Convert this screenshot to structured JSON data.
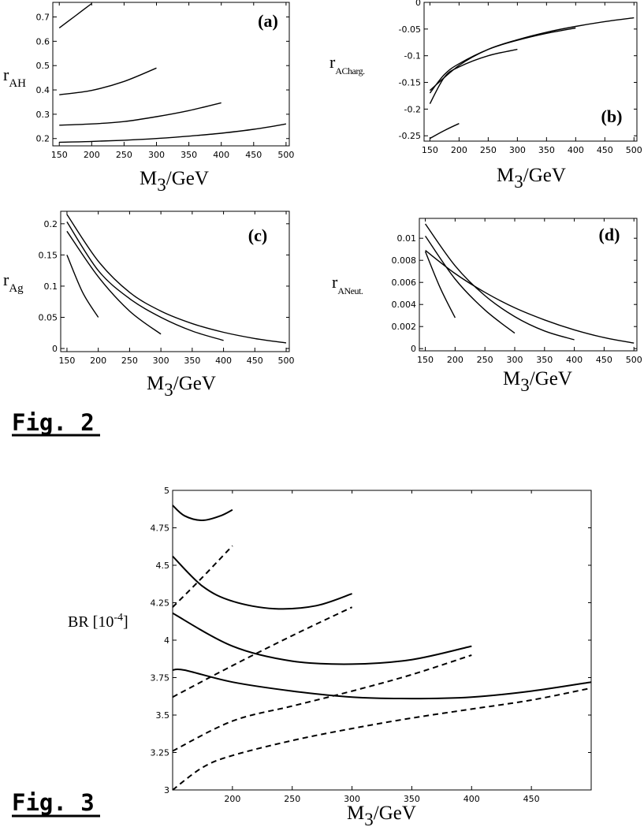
{
  "figures": {
    "fig2_label": "Fig. 2",
    "fig3_label": "Fig. 3"
  },
  "chart_data": [
    {
      "type": "line",
      "panel": "(a)",
      "xlabel": "M3/GeV",
      "ylabel": "r_AH",
      "xlim": [
        140,
        505
      ],
      "ylim": [
        0.17,
        0.76
      ],
      "xticks": [
        150,
        200,
        250,
        300,
        350,
        400,
        450,
        500
      ],
      "yticks": [
        0.2,
        0.3,
        0.4,
        0.5,
        0.6,
        0.7
      ],
      "series": [
        {
          "style": "solid",
          "x": [
            150,
            175,
            200
          ],
          "y": [
            0.655,
            0.705,
            0.755
          ]
        },
        {
          "style": "solid",
          "x": [
            150,
            200,
            250,
            300
          ],
          "y": [
            0.38,
            0.398,
            0.435,
            0.49
          ]
        },
        {
          "style": "solid",
          "x": [
            150,
            200,
            250,
            300,
            350,
            400
          ],
          "y": [
            0.255,
            0.26,
            0.27,
            0.29,
            0.315,
            0.347
          ]
        },
        {
          "style": "solid",
          "x": [
            150,
            200,
            250,
            300,
            350,
            400,
            450,
            500
          ],
          "y": [
            0.185,
            0.188,
            0.193,
            0.2,
            0.21,
            0.222,
            0.238,
            0.26
          ]
        }
      ]
    },
    {
      "type": "line",
      "panel": "(b)",
      "xlabel": "M3/GeV",
      "ylabel": "r_ACharg.",
      "xlim": [
        140,
        505
      ],
      "ylim": [
        -0.26,
        0.0
      ],
      "xticks": [
        150,
        200,
        250,
        300,
        350,
        400,
        450,
        500
      ],
      "yticks": [
        0,
        -0.05,
        -0.1,
        -0.15,
        -0.2,
        -0.25
      ],
      "series": [
        {
          "style": "solid",
          "x": [
            150,
            175,
            200
          ],
          "y": [
            -0.255,
            -0.24,
            -0.227
          ]
        },
        {
          "style": "solid",
          "x": [
            150,
            175,
            200,
            250,
            300
          ],
          "y": [
            -0.19,
            -0.14,
            -0.121,
            -0.1,
            -0.088
          ]
        },
        {
          "style": "solid",
          "x": [
            150,
            175,
            200,
            250,
            300,
            350,
            400
          ],
          "y": [
            -0.17,
            -0.135,
            -0.115,
            -0.088,
            -0.071,
            -0.058,
            -0.048
          ]
        },
        {
          "style": "solid",
          "x": [
            150,
            200,
            250,
            300,
            350,
            400,
            450,
            500
          ],
          "y": [
            -0.165,
            -0.118,
            -0.088,
            -0.07,
            -0.056,
            -0.045,
            -0.036,
            -0.029
          ]
        }
      ]
    },
    {
      "type": "line",
      "panel": "(c)",
      "xlabel": "M3/GeV",
      "ylabel": "r_Ag",
      "xlim": [
        140,
        505
      ],
      "ylim": [
        -0.005,
        0.22
      ],
      "xticks": [
        150,
        200,
        250,
        300,
        350,
        400,
        450,
        500
      ],
      "yticks": [
        0,
        0.05,
        0.1,
        0.15,
        0.2
      ],
      "series": [
        {
          "style": "solid",
          "x": [
            150,
            175,
            200
          ],
          "y": [
            0.15,
            0.09,
            0.05
          ]
        },
        {
          "style": "solid",
          "x": [
            150,
            200,
            250,
            300
          ],
          "y": [
            0.188,
            0.115,
            0.06,
            0.023
          ]
        },
        {
          "style": "solid",
          "x": [
            150,
            200,
            250,
            300,
            350,
            400
          ],
          "y": [
            0.203,
            0.125,
            0.08,
            0.05,
            0.028,
            0.013
          ]
        },
        {
          "style": "solid",
          "x": [
            150,
            200,
            250,
            300,
            350,
            400,
            450,
            500
          ],
          "y": [
            0.215,
            0.14,
            0.09,
            0.06,
            0.04,
            0.026,
            0.016,
            0.009
          ]
        }
      ]
    },
    {
      "type": "line",
      "panel": "(d)",
      "xlabel": "M3/GeV",
      "ylabel": "r_ANeut.",
      "xlim": [
        140,
        505
      ],
      "ylim": [
        -0.0002,
        0.0118
      ],
      "xticks": [
        150,
        200,
        250,
        300,
        350,
        400,
        450,
        500
      ],
      "yticks": [
        0,
        0.002,
        0.004,
        0.006,
        0.008,
        0.01
      ],
      "series": [
        {
          "style": "solid",
          "x": [
            150,
            175,
            200
          ],
          "y": [
            0.0088,
            0.0055,
            0.0028
          ]
        },
        {
          "style": "solid",
          "x": [
            150,
            200,
            250,
            300
          ],
          "y": [
            0.0102,
            0.0063,
            0.0035,
            0.0014
          ]
        },
        {
          "style": "solid",
          "x": [
            150,
            200,
            250,
            300,
            350,
            400
          ],
          "y": [
            0.0113,
            0.0075,
            0.0048,
            0.0029,
            0.0016,
            0.0008
          ]
        },
        {
          "style": "solid",
          "x": [
            150,
            200,
            250,
            300,
            350,
            400,
            450,
            500
          ],
          "y": [
            0.0089,
            0.0068,
            0.0051,
            0.0037,
            0.0026,
            0.0017,
            0.001,
            0.0005
          ]
        }
      ]
    },
    {
      "type": "line",
      "xlabel": "M3/GeV",
      "ylabel": "BR [10-4]",
      "xlim": [
        150,
        500
      ],
      "ylim": [
        3,
        5
      ],
      "xticks": [
        200,
        250,
        300,
        350,
        400,
        450
      ],
      "yticks": [
        3,
        3.25,
        3.5,
        3.75,
        4,
        4.25,
        4.5,
        4.75,
        5
      ],
      "series": [
        {
          "style": "solid",
          "x": [
            150,
            160,
            175,
            190,
            200
          ],
          "y": [
            4.9,
            4.83,
            4.8,
            4.83,
            4.87
          ]
        },
        {
          "style": "solid",
          "x": [
            150,
            175,
            200,
            235,
            270,
            300
          ],
          "y": [
            4.56,
            4.36,
            4.26,
            4.21,
            4.23,
            4.31
          ]
        },
        {
          "style": "solid",
          "x": [
            150,
            200,
            250,
            300,
            350,
            400
          ],
          "y": [
            4.18,
            3.96,
            3.86,
            3.84,
            3.87,
            3.96
          ]
        },
        {
          "style": "solid",
          "x": [
            150,
            160,
            200,
            250,
            300,
            350,
            400,
            450,
            500
          ],
          "y": [
            3.8,
            3.8,
            3.72,
            3.66,
            3.62,
            3.61,
            3.62,
            3.66,
            3.72
          ]
        },
        {
          "style": "dashed",
          "x": [
            150,
            175,
            200
          ],
          "y": [
            4.22,
            4.42,
            4.63
          ]
        },
        {
          "style": "dashed",
          "x": [
            150,
            200,
            250,
            300
          ],
          "y": [
            3.62,
            3.83,
            4.03,
            4.22
          ]
        },
        {
          "style": "dashed",
          "x": [
            150,
            200,
            250,
            300,
            350,
            400
          ],
          "y": [
            3.26,
            3.46,
            3.56,
            3.66,
            3.77,
            3.9
          ]
        },
        {
          "style": "dashed",
          "x": [
            150,
            175,
            200,
            250,
            300,
            350,
            400,
            450,
            500
          ],
          "y": [
            3.0,
            3.15,
            3.23,
            3.33,
            3.41,
            3.48,
            3.54,
            3.6,
            3.68
          ]
        }
      ]
    }
  ]
}
